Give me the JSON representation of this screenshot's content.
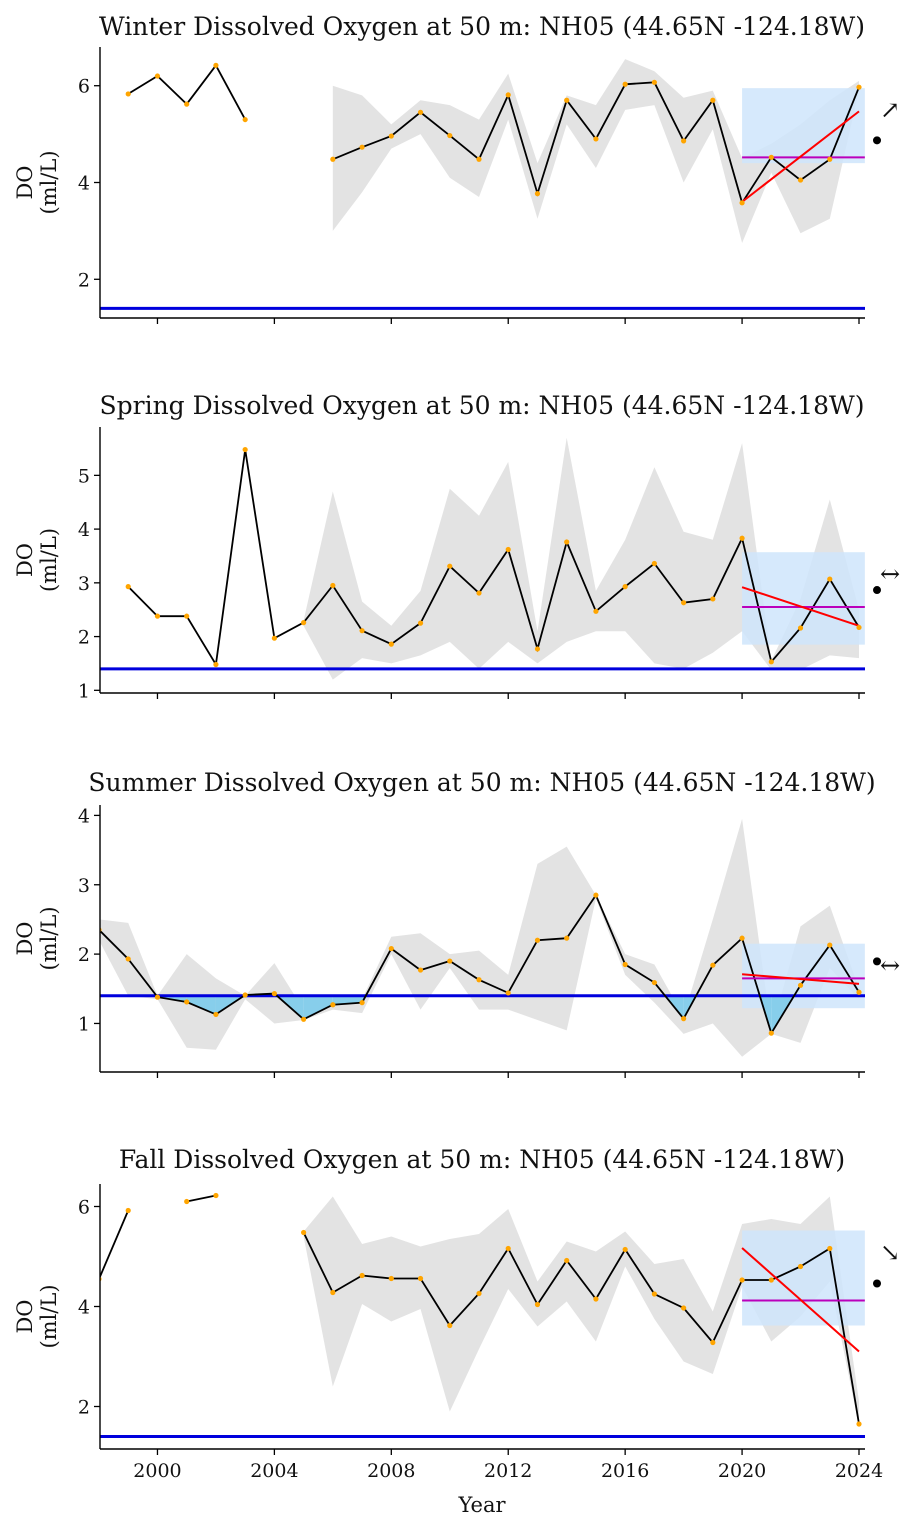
{
  "x_axis": {
    "label": "Year",
    "range": [
      1998,
      2024.2
    ],
    "ticks": [
      2000,
      2004,
      2008,
      2012,
      2016,
      2020,
      2024
    ],
    "tick_labels": [
      "2000",
      "2004",
      "2008",
      "2012",
      "2016",
      "2020",
      "2024"
    ]
  },
  "colors": {
    "line": "#000000",
    "points": "#ffa500",
    "band": "#e3e3e3",
    "threshold": "#0000dd",
    "recent_box": "#cfe5fb",
    "trend": "#ff0000",
    "recent_mean": "#bb00bb",
    "hypoxia_fill": "#87ceeb"
  },
  "chart_data": [
    {
      "type": "line",
      "title": "Winter Dissolved Oxygen at 50 m: NH05 (44.65N -124.18W)",
      "ylabel": "DO\n(ml/L)",
      "ylim": [
        1.2,
        6.8
      ],
      "yticks": [
        2,
        4,
        6
      ],
      "ytick_labels": [
        "2",
        "4",
        "6"
      ],
      "threshold": 1.4,
      "x": [
        1999,
        2000,
        2001,
        2002,
        2003,
        2006,
        2007,
        2008,
        2009,
        2010,
        2011,
        2012,
        2013,
        2014,
        2015,
        2016,
        2017,
        2018,
        2019,
        2020,
        2021,
        2022,
        2023,
        2024
      ],
      "y": [
        5.83,
        6.2,
        5.62,
        6.42,
        5.3,
        4.48,
        4.73,
        4.96,
        5.45,
        4.97,
        4.48,
        5.81,
        3.77,
        5.7,
        4.9,
        6.03,
        6.07,
        4.86,
        5.7,
        3.58,
        4.52,
        4.05,
        4.48,
        5.97
      ],
      "band": {
        "x": [
          2006,
          2007,
          2008,
          2009,
          2010,
          2011,
          2012,
          2013,
          2014,
          2015,
          2016,
          2017,
          2018,
          2019,
          2020,
          2021,
          2022,
          2023,
          2024
        ],
        "upper": [
          6.0,
          5.8,
          5.2,
          5.7,
          5.6,
          5.3,
          6.25,
          4.4,
          5.8,
          5.6,
          6.55,
          6.3,
          5.75,
          5.9,
          4.5,
          4.8,
          5.2,
          5.7,
          6.1
        ],
        "lower": [
          3.0,
          3.8,
          4.7,
          5.0,
          4.1,
          3.7,
          5.3,
          3.25,
          5.2,
          4.3,
          5.5,
          5.6,
          4.0,
          5.1,
          2.75,
          4.2,
          2.95,
          3.25,
          5.9
        ]
      },
      "recent_box": {
        "x": [
          2020,
          2024.2
        ],
        "y": [
          4.4,
          5.95
        ]
      },
      "recent_mean": 4.52,
      "trend": {
        "x": [
          2020,
          2024
        ],
        "y": [
          3.6,
          5.47
        ]
      },
      "trend_symbol": "↗",
      "mean_marker": "•"
    },
    {
      "type": "line",
      "title": "Spring Dissolved Oxygen at 50 m: NH05 (44.65N -124.18W)",
      "ylabel": "DO\n(ml/L)",
      "ylim": [
        0.95,
        5.9
      ],
      "yticks": [
        1,
        2,
        3,
        4,
        5
      ],
      "ytick_labels": [
        "1",
        "2",
        "3",
        "4",
        "5"
      ],
      "threshold": 1.4,
      "x": [
        1999,
        2000,
        2001,
        2002,
        2003,
        2004,
        2005,
        2006,
        2007,
        2008,
        2009,
        2010,
        2011,
        2012,
        2013,
        2014,
        2015,
        2016,
        2017,
        2018,
        2019,
        2020,
        2021,
        2022,
        2023,
        2024
      ],
      "y": [
        2.93,
        2.38,
        2.38,
        1.48,
        5.48,
        1.97,
        2.26,
        2.95,
        2.11,
        1.86,
        2.25,
        3.31,
        2.81,
        3.62,
        1.77,
        3.76,
        2.47,
        2.93,
        3.36,
        2.63,
        2.7,
        3.83,
        1.53,
        2.16,
        3.07,
        2.17
      ],
      "band": {
        "x": [
          1998,
          1999,
          2000,
          2001,
          2002,
          2003,
          2004,
          2005,
          2006,
          2007,
          2008,
          2009,
          2010,
          2011,
          2012,
          2013,
          2014,
          2015,
          2016,
          2017,
          2018,
          2019,
          2020,
          2021,
          2022,
          2023,
          2024
        ],
        "upper": [
          null,
          null,
          null,
          null,
          1.6,
          null,
          null,
          2.3,
          4.7,
          2.65,
          2.2,
          2.85,
          4.75,
          4.25,
          5.25,
          2.1,
          5.7,
          2.85,
          3.8,
          5.15,
          3.95,
          3.8,
          5.6,
          1.55,
          2.7,
          4.55,
          2.5
        ],
        "lower": [
          null,
          null,
          null,
          null,
          1.25,
          null,
          null,
          2.2,
          1.2,
          1.6,
          1.5,
          1.65,
          1.9,
          1.4,
          1.9,
          1.5,
          1.9,
          2.1,
          2.1,
          1.5,
          1.4,
          1.7,
          2.1,
          1.38,
          1.38,
          1.65,
          1.6
        ]
      },
      "recent_box": {
        "x": [
          2020,
          2024.2
        ],
        "y": [
          1.85,
          3.57
        ]
      },
      "recent_mean": 2.55,
      "trend": {
        "x": [
          2020,
          2024
        ],
        "y": [
          2.92,
          2.2
        ]
      },
      "trend_symbol": "↔",
      "mean_marker": "•"
    },
    {
      "type": "line",
      "title": "Summer Dissolved Oxygen at 50 m: NH05 (44.65N -124.18W)",
      "ylabel": "DO\n(ml/L)",
      "ylim": [
        0.3,
        4.15
      ],
      "yticks": [
        1,
        2,
        3,
        4
      ],
      "ytick_labels": [
        "1",
        "2",
        "3",
        "4"
      ],
      "threshold": 1.4,
      "x": [
        1998,
        1999,
        2000,
        2001,
        2002,
        2003,
        2004,
        2005,
        2006,
        2007,
        2008,
        2009,
        2010,
        2011,
        2012,
        2013,
        2014,
        2015,
        2016,
        2017,
        2018,
        2019,
        2020,
        2021,
        2022,
        2023,
        2024
      ],
      "y": [
        2.35,
        1.93,
        1.38,
        1.31,
        1.13,
        1.41,
        1.43,
        1.06,
        1.27,
        1.3,
        2.08,
        1.77,
        1.9,
        1.63,
        1.44,
        2.2,
        2.23,
        2.85,
        1.85,
        1.59,
        1.07,
        1.84,
        2.23,
        0.86,
        1.55,
        2.13,
        1.45
      ],
      "band": {
        "x": [
          1998,
          1999,
          2000,
          2001,
          2002,
          2003,
          2004,
          2005,
          2006,
          2007,
          2008,
          2009,
          2010,
          2011,
          2012,
          2013,
          2014,
          2015,
          2016,
          2017,
          2018,
          2019,
          2020,
          2021,
          2022,
          2023,
          2024
        ],
        "upper": [
          2.5,
          2.45,
          1.4,
          2.0,
          1.65,
          1.4,
          1.87,
          1.2,
          1.3,
          1.35,
          2.25,
          2.3,
          2.0,
          2.05,
          1.7,
          3.3,
          3.55,
          2.85,
          2.0,
          1.85,
          1.1,
          2.5,
          3.95,
          0.9,
          2.4,
          2.7,
          1.5
        ],
        "lower": [
          2.2,
          1.4,
          1.35,
          0.65,
          0.62,
          1.35,
          1.0,
          1.05,
          1.2,
          1.15,
          2.0,
          1.2,
          1.8,
          1.2,
          1.2,
          1.05,
          0.9,
          2.8,
          1.7,
          1.3,
          0.85,
          1.0,
          0.52,
          0.85,
          0.72,
          1.8,
          1.35
        ]
      },
      "hypoxia_fill": true,
      "recent_box": {
        "x": [
          2020,
          2024.2
        ],
        "y": [
          1.22,
          2.15
        ]
      },
      "recent_mean": 1.65,
      "trend": {
        "x": [
          2020,
          2024
        ],
        "y": [
          1.71,
          1.57
        ]
      },
      "trend_symbol": "↔",
      "mean_marker": "•"
    },
    {
      "type": "line",
      "title": "Fall Dissolved Oxygen at 50 m: NH05 (44.65N -124.18W)",
      "ylabel": "DO\n(ml/L)",
      "ylim": [
        1.15,
        6.45
      ],
      "yticks": [
        2,
        4,
        6
      ],
      "ytick_labels": [
        "2",
        "4",
        "6"
      ],
      "threshold": 1.4,
      "x": [
        1998,
        1999,
        2001,
        2002,
        2005,
        2006,
        2007,
        2008,
        2009,
        2010,
        2011,
        2012,
        2013,
        2014,
        2015,
        2016,
        2017,
        2018,
        2019,
        2020,
        2021,
        2022,
        2023,
        2024
      ],
      "y": [
        4.55,
        5.92,
        6.1,
        6.22,
        5.48,
        4.28,
        4.62,
        4.56,
        4.56,
        3.62,
        4.26,
        5.16,
        4.04,
        4.92,
        4.15,
        5.14,
        4.25,
        3.97,
        3.28,
        4.53,
        4.53,
        4.8,
        5.16,
        1.65
      ],
      "segments": [
        [
          1998,
          1999
        ],
        [
          2001,
          2002
        ],
        [
          2005,
          2024
        ]
      ],
      "band": {
        "x": [
          2005,
          2006,
          2007,
          2008,
          2009,
          2010,
          2011,
          2012,
          2013,
          2014,
          2015,
          2016,
          2017,
          2018,
          2019,
          2020,
          2021,
          2022,
          2023,
          2024
        ],
        "upper": [
          5.5,
          6.2,
          5.25,
          5.4,
          5.2,
          5.35,
          5.45,
          5.95,
          4.5,
          5.3,
          5.1,
          5.5,
          4.85,
          4.95,
          3.9,
          5.65,
          5.75,
          5.65,
          6.2,
          2.1
        ],
        "lower": [
          5.4,
          2.4,
          4.05,
          3.7,
          3.95,
          1.9,
          3.15,
          4.35,
          3.6,
          4.1,
          3.3,
          4.8,
          3.75,
          2.9,
          2.65,
          4.4,
          3.3,
          3.8,
          4.5,
          1.6
        ]
      },
      "recent_box": {
        "x": [
          2020,
          2024.2
        ],
        "y": [
          3.62,
          5.52
        ]
      },
      "recent_mean": 4.12,
      "trend": {
        "x": [
          2020,
          2024
        ],
        "y": [
          5.17,
          3.1
        ]
      },
      "trend_symbol": "↘",
      "mean_marker": "•"
    }
  ]
}
